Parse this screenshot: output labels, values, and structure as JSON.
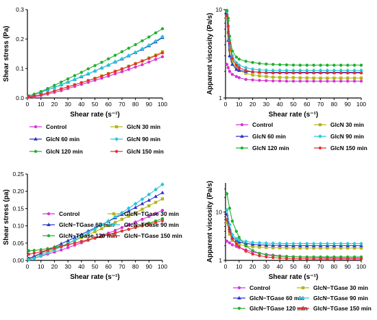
{
  "chart_data": [
    {
      "type": "line",
      "xlabel": "Shear rate (s⁻¹)",
      "ylabel": "Shear stress (Pa)",
      "xlim": [
        0,
        100
      ],
      "ylim": [
        0,
        0.3
      ],
      "yscale": "linear",
      "x_ticks": [
        "0",
        "10",
        "20",
        "30",
        "40",
        "50",
        "60",
        "70",
        "80",
        "90",
        "100"
      ],
      "y_ticks": [
        "0.0",
        "0.1",
        "0.2",
        "0.3"
      ],
      "grid": false,
      "legend_placement": "bottom",
      "x": [
        1,
        5,
        10,
        15,
        20,
        25,
        30,
        35,
        40,
        45,
        50,
        55,
        60,
        65,
        70,
        75,
        80,
        85,
        90,
        95,
        100
      ],
      "series": [
        {
          "name": "Control",
          "color": "#d633d6",
          "marker": "circle",
          "values": [
            0.002,
            0.004,
            0.008,
            0.013,
            0.019,
            0.025,
            0.032,
            0.039,
            0.046,
            0.053,
            0.06,
            0.067,
            0.074,
            0.082,
            0.089,
            0.097,
            0.105,
            0.113,
            0.122,
            0.131,
            0.14
          ]
        },
        {
          "name": "GlcN 30 min",
          "color": "#b5b51a",
          "marker": "square",
          "values": [
            0.004,
            0.007,
            0.011,
            0.017,
            0.024,
            0.031,
            0.038,
            0.045,
            0.052,
            0.059,
            0.067,
            0.075,
            0.083,
            0.091,
            0.099,
            0.108,
            0.117,
            0.126,
            0.136,
            0.146,
            0.157
          ]
        },
        {
          "name": "GlcN 60 min",
          "color": "#3030cc",
          "marker": "triangle",
          "values": [
            0.006,
            0.012,
            0.019,
            0.028,
            0.036,
            0.045,
            0.054,
            0.063,
            0.072,
            0.082,
            0.092,
            0.102,
            0.112,
            0.122,
            0.132,
            0.143,
            0.154,
            0.165,
            0.177,
            0.19,
            0.205
          ]
        },
        {
          "name": "GlcN 90 min",
          "color": "#26c7d9",
          "marker": "diamond",
          "values": [
            0.006,
            0.012,
            0.019,
            0.028,
            0.036,
            0.045,
            0.054,
            0.063,
            0.073,
            0.082,
            0.092,
            0.102,
            0.112,
            0.123,
            0.133,
            0.144,
            0.155,
            0.167,
            0.179,
            0.193,
            0.208
          ]
        },
        {
          "name": "GlcN 120 min",
          "color": "#1fb02e",
          "marker": "circle",
          "values": [
            0.007,
            0.013,
            0.022,
            0.032,
            0.043,
            0.054,
            0.065,
            0.076,
            0.087,
            0.099,
            0.11,
            0.121,
            0.133,
            0.145,
            0.157,
            0.169,
            0.181,
            0.194,
            0.207,
            0.221,
            0.235
          ]
        },
        {
          "name": "GlcN 150 min",
          "color": "#e53030",
          "marker": "circle",
          "values": [
            0.004,
            0.007,
            0.011,
            0.017,
            0.024,
            0.031,
            0.038,
            0.045,
            0.052,
            0.059,
            0.066,
            0.074,
            0.082,
            0.09,
            0.098,
            0.107,
            0.116,
            0.125,
            0.134,
            0.143,
            0.153
          ]
        }
      ]
    },
    {
      "type": "line",
      "xlabel": "Shear rate (s⁻¹)",
      "ylabel": "Apparent viscosity (Pa/s)",
      "xlim": [
        0,
        100
      ],
      "ylim": [
        1,
        10
      ],
      "yscale": "log",
      "x_ticks": [
        "0",
        "10",
        "20",
        "30",
        "40",
        "50",
        "60",
        "70",
        "80",
        "90",
        "100"
      ],
      "y_ticks": [
        "1",
        "10"
      ],
      "grid": false,
      "legend_placement": "bottom",
      "x": [
        1,
        2,
        3,
        5,
        8,
        10,
        15,
        20,
        25,
        30,
        35,
        40,
        45,
        50,
        55,
        60,
        65,
        70,
        75,
        80,
        85,
        90,
        95,
        100
      ],
      "series": [
        {
          "name": "Control",
          "color": "#d633d6",
          "marker": "circle",
          "values": [
            2.4,
            2.2,
            2.0,
            1.85,
            1.75,
            1.7,
            1.62,
            1.6,
            1.58,
            1.57,
            1.56,
            1.56,
            1.55,
            1.55,
            1.55,
            1.55,
            1.55,
            1.55,
            1.55,
            1.55,
            1.55,
            1.55,
            1.55,
            1.55
          ]
        },
        {
          "name": "GlcN 30 min",
          "color": "#b5b51a",
          "marker": "square",
          "values": [
            8.0,
            5.5,
            3.5,
            2.6,
            2.2,
            2.05,
            1.9,
            1.82,
            1.78,
            1.75,
            1.72,
            1.71,
            1.7,
            1.7,
            1.69,
            1.69,
            1.68,
            1.68,
            1.68,
            1.68,
            1.68,
            1.68,
            1.68,
            1.68
          ]
        },
        {
          "name": "GlcN 60 min",
          "color": "#3030cc",
          "marker": "triangle",
          "values": [
            9.0,
            4.5,
            3.0,
            2.4,
            2.1,
            2.05,
            2.0,
            1.98,
            1.96,
            1.95,
            1.95,
            1.95,
            1.95,
            1.95,
            1.95,
            1.95,
            1.95,
            1.95,
            1.95,
            1.95,
            1.95,
            1.95,
            1.95,
            1.95
          ]
        },
        {
          "name": "GlcN 90 min",
          "color": "#26c7d9",
          "marker": "diamond",
          "values": [
            9.5,
            7.5,
            4.5,
            3.0,
            2.5,
            2.35,
            2.2,
            2.12,
            2.08,
            2.06,
            2.05,
            2.05,
            2.05,
            2.05,
            2.05,
            2.05,
            2.05,
            2.05,
            2.05,
            2.05,
            2.05,
            2.05,
            2.05,
            2.05
          ]
        },
        {
          "name": "GlcN 120 min",
          "color": "#1fb02e",
          "marker": "circle",
          "values": [
            9.8,
            8.0,
            5.0,
            3.4,
            2.9,
            2.75,
            2.6,
            2.52,
            2.46,
            2.42,
            2.4,
            2.38,
            2.37,
            2.36,
            2.35,
            2.35,
            2.35,
            2.35,
            2.35,
            2.35,
            2.35,
            2.35,
            2.35,
            2.35
          ]
        },
        {
          "name": "GlcN 150 min",
          "color": "#e53030",
          "marker": "circle",
          "values": [
            8.5,
            6.5,
            4.2,
            2.8,
            2.35,
            2.2,
            2.05,
            1.98,
            1.95,
            1.93,
            1.92,
            1.92,
            1.92,
            1.92,
            1.92,
            1.92,
            1.92,
            1.92,
            1.92,
            1.92,
            1.92,
            1.92,
            1.92,
            1.92
          ]
        }
      ]
    },
    {
      "type": "line",
      "xlabel": "Shear rate (s⁻¹)",
      "ylabel": "Shear stress (pa)",
      "xlim": [
        0,
        100
      ],
      "ylim": [
        0,
        0.25
      ],
      "yscale": "linear",
      "x_ticks": [
        "0",
        "10",
        "20",
        "30",
        "40",
        "50",
        "60",
        "70",
        "80",
        "90",
        "100"
      ],
      "y_ticks": [
        "0.00",
        "0.05",
        "0.10",
        "0.15",
        "0.20",
        "0.25"
      ],
      "grid": false,
      "legend_placement": "bottom",
      "x": [
        1,
        5,
        10,
        15,
        20,
        25,
        30,
        35,
        40,
        45,
        50,
        55,
        60,
        65,
        70,
        75,
        80,
        85,
        90,
        95,
        100
      ],
      "series": [
        {
          "name": "Control",
          "color": "#d633d6",
          "marker": "circle",
          "values": [
            0.003,
            0.006,
            0.012,
            0.018,
            0.024,
            0.03,
            0.037,
            0.044,
            0.051,
            0.058,
            0.065,
            0.072,
            0.079,
            0.087,
            0.095,
            0.103,
            0.111,
            0.119,
            0.127,
            0.136,
            0.145
          ]
        },
        {
          "name": "GlcN−TGase 30 min",
          "color": "#b5b51a",
          "marker": "square",
          "values": [
            0.005,
            0.01,
            0.017,
            0.025,
            0.033,
            0.041,
            0.049,
            0.057,
            0.066,
            0.075,
            0.083,
            0.092,
            0.101,
            0.11,
            0.119,
            0.128,
            0.138,
            0.148,
            0.158,
            0.168,
            0.178
          ]
        },
        {
          "name": "GlcN−TGase 60 min",
          "color": "#3030cc",
          "marker": "triangle",
          "values": [
            0.006,
            0.012,
            0.021,
            0.03,
            0.039,
            0.048,
            0.057,
            0.066,
            0.075,
            0.085,
            0.094,
            0.104,
            0.113,
            0.123,
            0.133,
            0.143,
            0.153,
            0.164,
            0.174,
            0.185,
            0.196
          ]
        },
        {
          "name": "GlcN−TGase 90 min",
          "color": "#26c7d9",
          "marker": "diamond",
          "values": [
            0.002,
            0.006,
            0.013,
            0.021,
            0.03,
            0.039,
            0.049,
            0.059,
            0.069,
            0.08,
            0.091,
            0.103,
            0.114,
            0.126,
            0.138,
            0.151,
            0.164,
            0.177,
            0.191,
            0.205,
            0.22
          ]
        },
        {
          "name": "GlcN−TGase 120 min",
          "color": "#1fb02e",
          "marker": "circle",
          "values": [
            0.028,
            0.029,
            0.031,
            0.034,
            0.038,
            0.042,
            0.046,
            0.05,
            0.055,
            0.059,
            0.064,
            0.069,
            0.074,
            0.079,
            0.085,
            0.09,
            0.096,
            0.102,
            0.108,
            0.114,
            0.121
          ]
        },
        {
          "name": "GlcN−TGase 150 min",
          "color": "#e53030",
          "marker": "circle",
          "values": [
            0.018,
            0.021,
            0.025,
            0.03,
            0.035,
            0.04,
            0.045,
            0.05,
            0.055,
            0.06,
            0.065,
            0.07,
            0.075,
            0.08,
            0.085,
            0.09,
            0.095,
            0.1,
            0.105,
            0.11,
            0.115
          ]
        }
      ]
    },
    {
      "type": "line",
      "xlabel": "Shear rate (s⁻¹)",
      "ylabel": "Apparent viscosity (Pa/s)",
      "xlim": [
        0,
        100
      ],
      "ylim": [
        1,
        40
      ],
      "yscale": "log",
      "x_ticks": [
        "0",
        "10",
        "20",
        "30",
        "40",
        "50",
        "60",
        "70",
        "80",
        "90",
        "100"
      ],
      "y_ticks": [
        "1",
        "10"
      ],
      "grid": false,
      "legend_placement": "bottom",
      "x": [
        1,
        3,
        5,
        8,
        10,
        15,
        20,
        25,
        30,
        35,
        40,
        45,
        50,
        55,
        60,
        65,
        70,
        75,
        80,
        85,
        90,
        95,
        100
      ],
      "series": [
        {
          "name": "Control",
          "color": "#d633d6",
          "marker": "circle",
          "values": [
            2.5,
            2.3,
            2.1,
            1.95,
            1.85,
            1.65,
            1.5,
            1.4,
            1.33,
            1.28,
            1.24,
            1.21,
            1.19,
            1.17,
            1.16,
            1.15,
            1.14,
            1.13,
            1.13,
            1.12,
            1.12,
            1.12,
            1.12
          ]
        },
        {
          "name": "GlcN−TGase 30 min",
          "color": "#b5b51a",
          "marker": "square",
          "values": [
            6.0,
            3.5,
            2.6,
            2.3,
            2.15,
            2.0,
            1.92,
            1.88,
            1.85,
            1.83,
            1.82,
            1.81,
            1.8,
            1.8,
            1.8,
            1.8,
            1.8,
            1.8,
            1.8,
            1.8,
            1.8,
            1.8,
            1.8
          ]
        },
        {
          "name": "GlcN−TGase 60 min",
          "color": "#3030cc",
          "marker": "triangle",
          "values": [
            9.0,
            4.5,
            3.0,
            2.6,
            2.4,
            2.25,
            2.15,
            2.1,
            2.07,
            2.05,
            2.04,
            2.03,
            2.02,
            2.02,
            2.02,
            2.02,
            2.02,
            2.02,
            2.02,
            2.02,
            2.02,
            2.02,
            2.02
          ]
        },
        {
          "name": "GlcN−TGase 90 min",
          "color": "#26c7d9",
          "marker": "diamond",
          "values": [
            11.0,
            5.5,
            3.4,
            2.8,
            2.6,
            2.45,
            2.35,
            2.3,
            2.27,
            2.25,
            2.23,
            2.22,
            2.22,
            2.22,
            2.22,
            2.22,
            2.22,
            2.22,
            2.22,
            2.22,
            2.22,
            2.22,
            2.22
          ]
        },
        {
          "name": "GlcN−TGase 120 min",
          "color": "#1fb02e",
          "marker": "circle",
          "values": [
            24.0,
            12.0,
            6.5,
            4.0,
            3.0,
            2.0,
            1.6,
            1.4,
            1.3,
            1.25,
            1.22,
            1.2,
            1.19,
            1.18,
            1.18,
            1.18,
            1.18,
            1.18,
            1.18,
            1.18,
            1.18,
            1.18,
            1.18
          ]
        },
        {
          "name": "GlcN−TGase 150 min",
          "color": "#e53030",
          "marker": "circle",
          "values": [
            7.0,
            4.0,
            2.8,
            2.2,
            1.9,
            1.55,
            1.35,
            1.25,
            1.18,
            1.14,
            1.12,
            1.1,
            1.09,
            1.08,
            1.08,
            1.07,
            1.07,
            1.07,
            1.07,
            1.07,
            1.07,
            1.07,
            1.07
          ]
        }
      ]
    }
  ]
}
